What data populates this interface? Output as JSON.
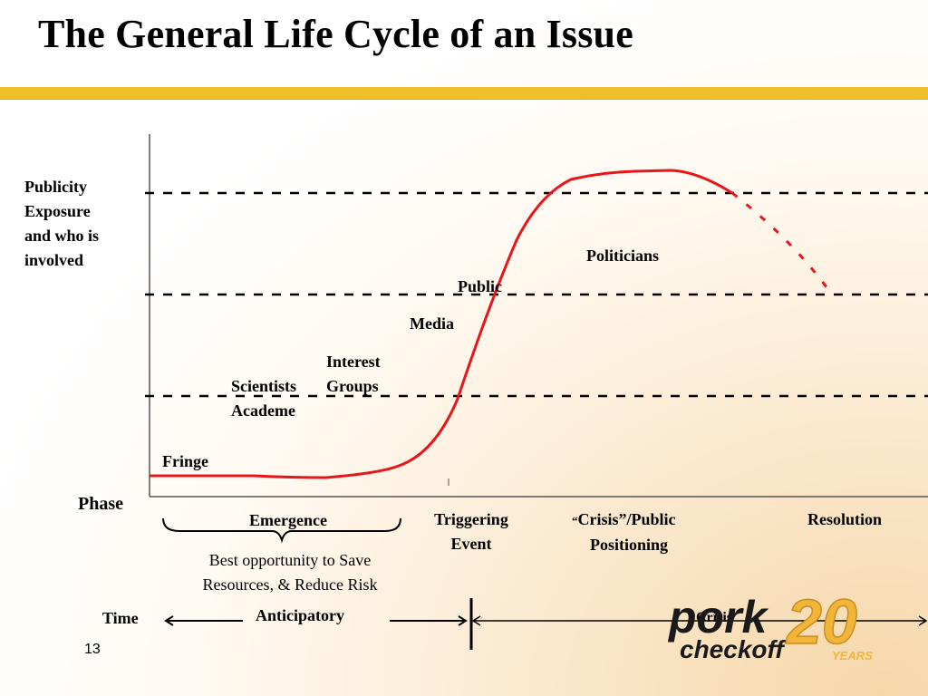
{
  "title": "The General Life Cycle of an Issue",
  "y_axis_label": [
    "Publicity",
    "Exposure",
    "and who is",
    "involved"
  ],
  "curve_labels": {
    "fringe": "Fringe",
    "scientists": [
      "Scientists",
      "Academe"
    ],
    "interest_groups": [
      "Interest",
      "Groups"
    ],
    "media": "Media",
    "public": "Public",
    "politicians": "Politicians"
  },
  "phase_label": "Phase",
  "phases": {
    "emergence": "Emergence",
    "triggering": [
      "Triggering",
      "Event"
    ],
    "crisis_quote": "“",
    "crisis": [
      "Crisis”/Public",
      "Positioning"
    ],
    "resolution": "Resolution"
  },
  "opportunity": [
    "Best opportunity  to Save",
    "Resources, & Reduce Risk"
  ],
  "time_label": "Time",
  "anticipatory": "Anticipatory",
  "crisis_time": "Crisis",
  "page_number": "13",
  "logo": {
    "word1": "pork",
    "word2": "checkoff",
    "number": "20",
    "years": "YEARS"
  },
  "colors": {
    "accent_bar": "#efbf2c",
    "curve": "#e8161b",
    "logo_gold": "#f2b53a"
  }
}
